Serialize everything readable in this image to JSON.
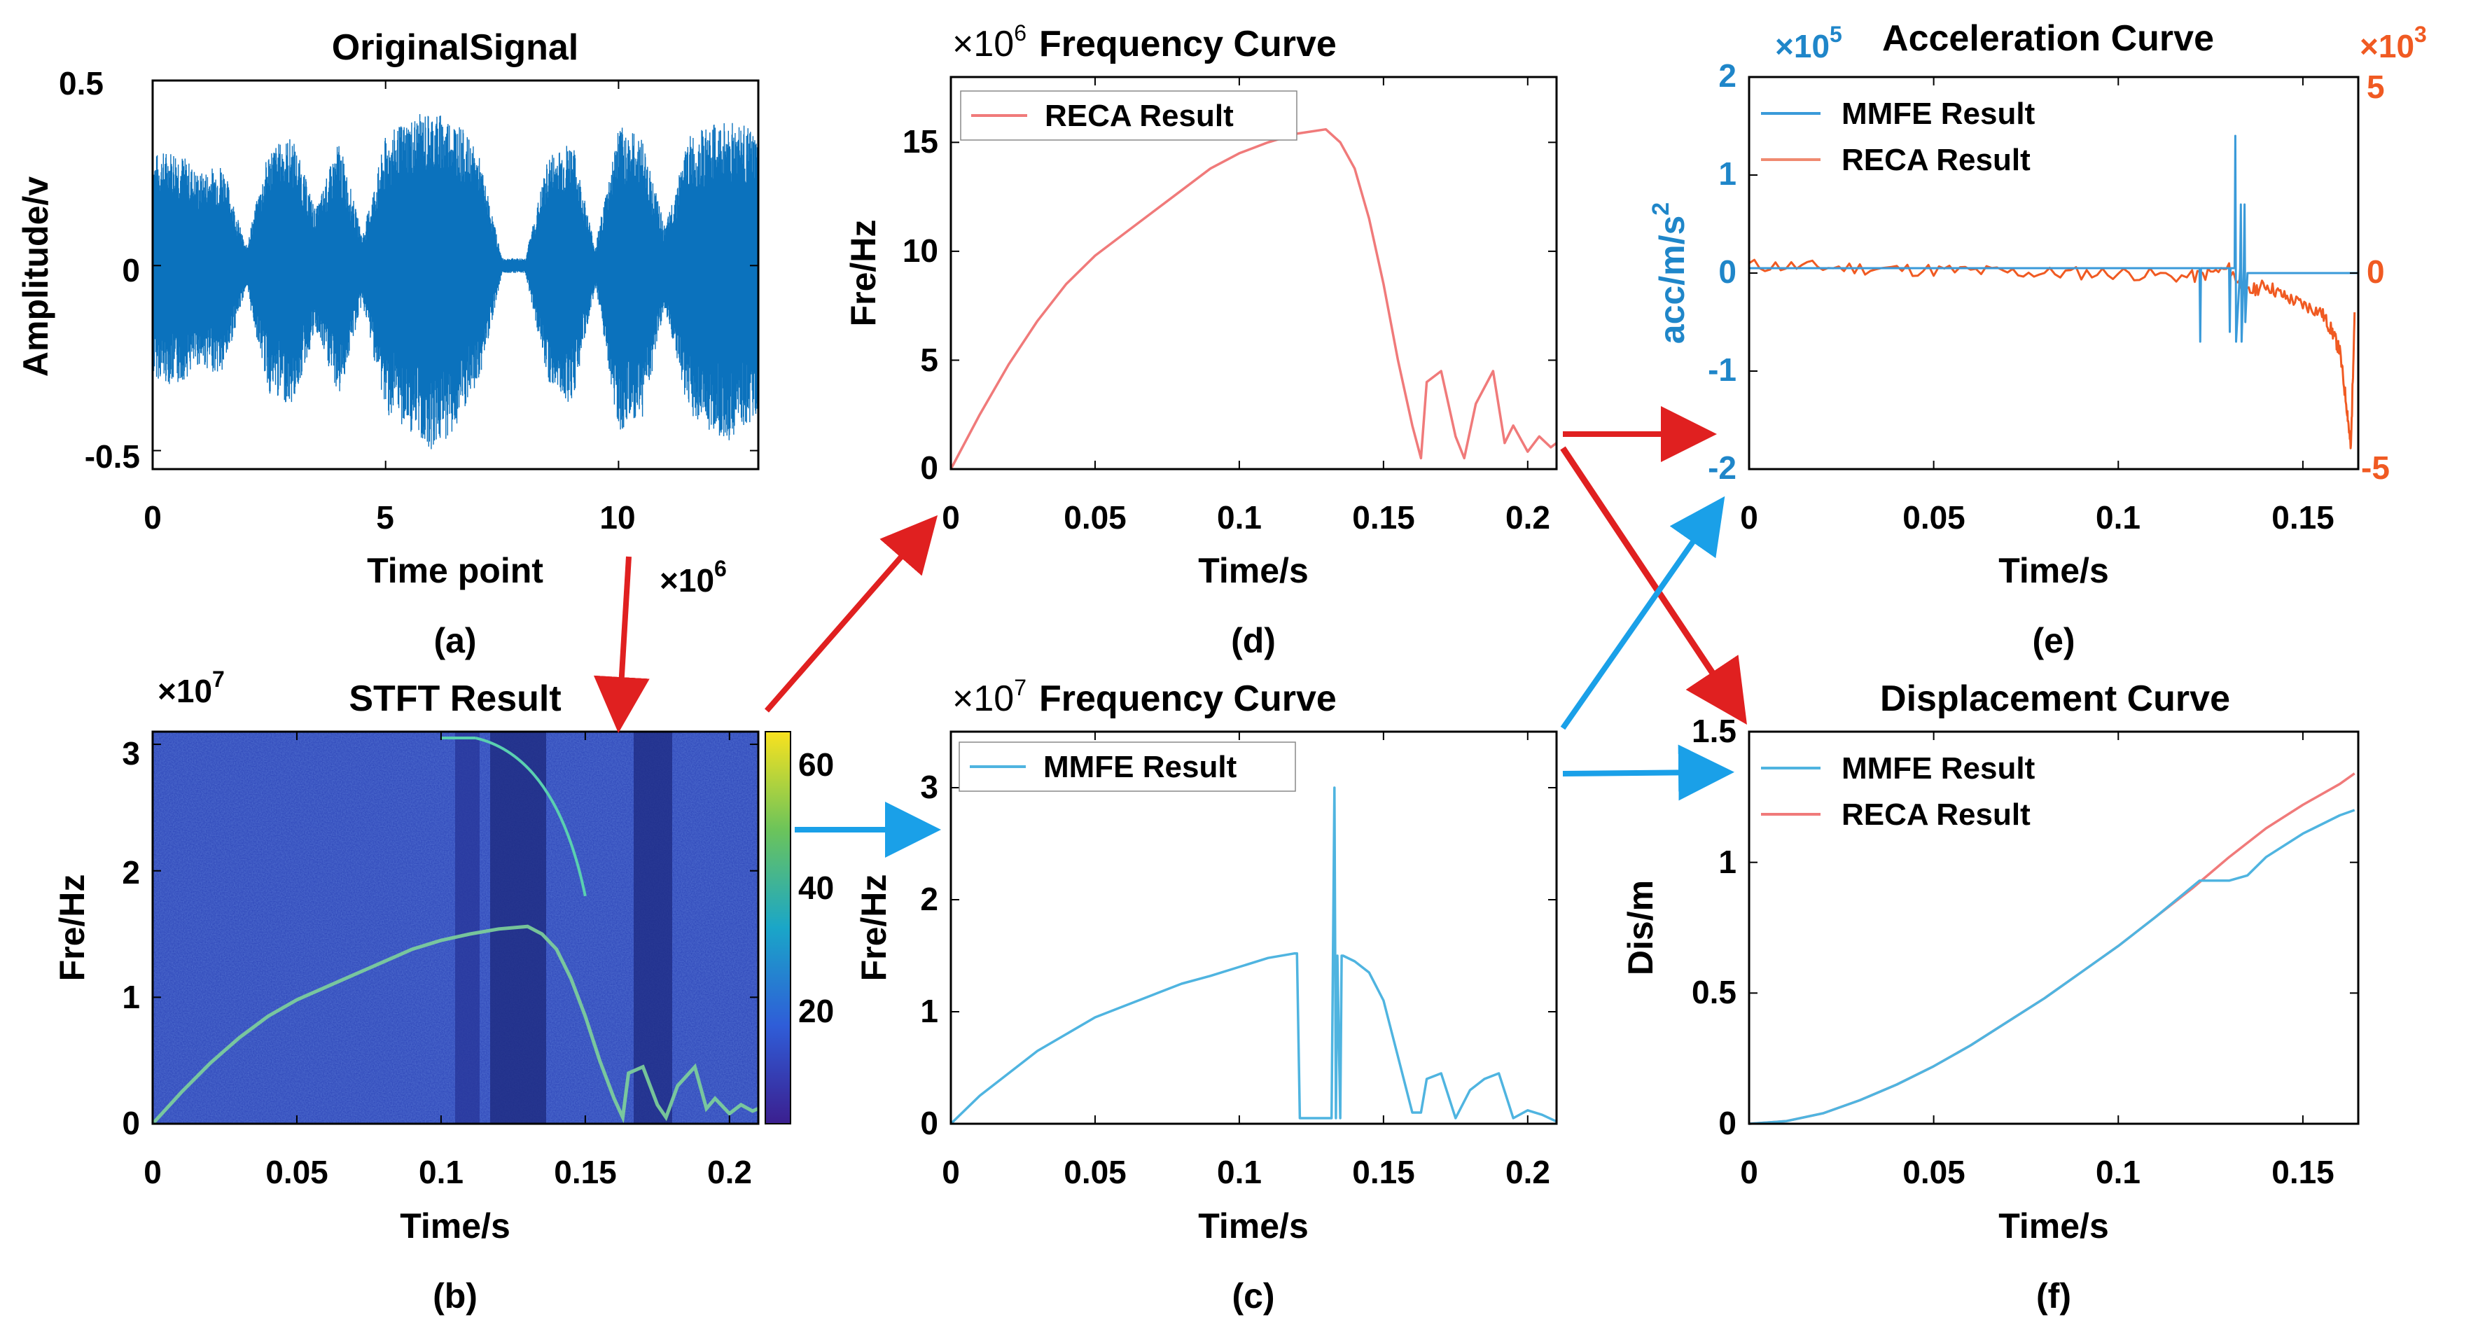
{
  "figure_captions": [
    "(a)",
    "(b)",
    "(c)",
    "(d)",
    "(e)",
    "(f)"
  ],
  "colors": {
    "signal": "#0b72bd",
    "mmfe": "#4fb4e0",
    "reca": "#f07a7a",
    "acc_mmfe": "#3a9ad9",
    "acc_reca": "#f05a22",
    "arrow_red": "#e02020",
    "arrow_blue": "#1aa0e8"
  },
  "chart_data": [
    {
      "id": "a",
      "type": "line",
      "title": "OriginalSignal",
      "xlabel": "Time point",
      "ylabel": "Amplitude/v",
      "x_multiplier": "×10",
      "x_multiplier_exp": "6",
      "xlim": [
        0,
        13
      ],
      "ylim": [
        -0.55,
        0.5
      ],
      "xticks": [
        "0",
        "5",
        "10"
      ],
      "yticks": [
        "0.5",
        "0",
        "-0.5"
      ],
      "envelope_x": [
        0,
        0.5,
        1,
        1.5,
        2,
        2.5,
        3,
        3.5,
        4,
        4.5,
        5,
        5.5,
        6,
        6.5,
        7,
        7.5,
        8,
        8.5,
        9,
        9.5,
        10,
        10.5,
        11,
        11.5,
        12,
        12.5,
        13
      ],
      "envelope_upper": [
        0.3,
        0.32,
        0.25,
        0.28,
        0.05,
        0.32,
        0.35,
        0.15,
        0.34,
        0.08,
        0.35,
        0.4,
        0.42,
        0.4,
        0.3,
        0.02,
        0.02,
        0.3,
        0.34,
        0.05,
        0.38,
        0.35,
        0.1,
        0.35,
        0.38,
        0.4,
        0.35
      ],
      "envelope_lower": [
        -0.3,
        -0.33,
        -0.27,
        -0.3,
        -0.06,
        -0.35,
        -0.38,
        -0.18,
        -0.36,
        -0.1,
        -0.4,
        -0.45,
        -0.5,
        -0.45,
        -0.32,
        -0.02,
        -0.02,
        -0.32,
        -0.38,
        -0.06,
        -0.45,
        -0.42,
        -0.12,
        -0.4,
        -0.45,
        -0.48,
        -0.4
      ]
    },
    {
      "id": "b",
      "type": "heatmap",
      "title": "STFT Result",
      "xlabel": "Time/s",
      "ylabel": "Fre/Hz",
      "y_multiplier": "×10",
      "y_multiplier_exp": "7",
      "xlim": [
        0,
        0.21
      ],
      "ylim": [
        0,
        3.1
      ],
      "xticks": [
        "0",
        "0.05",
        "0.1",
        "0.15",
        "0.2"
      ],
      "yticks": [
        "0",
        "1",
        "2",
        "3"
      ],
      "colorbar_ticks": [
        "20",
        "40",
        "60"
      ],
      "colorbar_range": [
        0,
        65
      ]
    },
    {
      "id": "c",
      "type": "line",
      "title": "Frequency Curve",
      "title_prefix": "×10",
      "title_prefix_exp": "7",
      "xlabel": "Time/s",
      "ylabel": "Fre/Hz",
      "xlim": [
        0,
        0.21
      ],
      "ylim": [
        0,
        3.5
      ],
      "xticks": [
        "0",
        "0.05",
        "0.1",
        "0.15",
        "0.2"
      ],
      "yticks": [
        "0",
        "1",
        "2",
        "3"
      ],
      "legend": [
        "MMFE Result"
      ],
      "series": [
        {
          "name": "MMFE Result",
          "x": [
            0,
            0.01,
            0.02,
            0.03,
            0.04,
            0.05,
            0.06,
            0.07,
            0.08,
            0.09,
            0.1,
            0.11,
            0.119,
            0.12,
            0.121,
            0.132,
            0.133,
            0.1335,
            0.134,
            0.135,
            0.1355,
            0.136,
            0.14,
            0.145,
            0.15,
            0.155,
            0.16,
            0.163,
            0.165,
            0.17,
            0.175,
            0.18,
            0.185,
            0.19,
            0.195,
            0.2,
            0.205,
            0.21
          ],
          "y": [
            0,
            0.25,
            0.45,
            0.65,
            0.8,
            0.95,
            1.05,
            1.15,
            1.25,
            1.32,
            1.4,
            1.48,
            1.52,
            1.52,
            0.05,
            0.05,
            3.0,
            0.05,
            1.5,
            0.05,
            1.5,
            1.5,
            1.45,
            1.35,
            1.1,
            0.6,
            0.1,
            0.1,
            0.4,
            0.45,
            0.05,
            0.3,
            0.4,
            0.45,
            0.05,
            0.12,
            0.08,
            0.02
          ]
        }
      ]
    },
    {
      "id": "d",
      "type": "line",
      "title": "Frequency Curve",
      "title_prefix": "×10",
      "title_prefix_exp": "6",
      "xlabel": "Time/s",
      "ylabel": "Fre/Hz",
      "xlim": [
        0,
        0.21
      ],
      "ylim": [
        0,
        18
      ],
      "xticks": [
        "0",
        "0.05",
        "0.1",
        "0.15",
        "0.2"
      ],
      "yticks": [
        "0",
        "5",
        "10",
        "15"
      ],
      "legend": [
        "RECA Result"
      ],
      "series": [
        {
          "name": "RECA Result",
          "x": [
            0,
            0.01,
            0.02,
            0.03,
            0.04,
            0.05,
            0.06,
            0.07,
            0.08,
            0.09,
            0.1,
            0.11,
            0.12,
            0.13,
            0.135,
            0.14,
            0.145,
            0.15,
            0.155,
            0.16,
            0.163,
            0.165,
            0.17,
            0.175,
            0.178,
            0.182,
            0.188,
            0.192,
            0.195,
            0.2,
            0.204,
            0.208,
            0.21
          ],
          "y": [
            0,
            2.5,
            4.8,
            6.8,
            8.5,
            9.8,
            10.8,
            11.8,
            12.8,
            13.8,
            14.5,
            15.0,
            15.4,
            15.6,
            15.0,
            13.8,
            11.5,
            8.5,
            5.0,
            2.0,
            0.5,
            4.0,
            4.5,
            1.5,
            0.5,
            3.0,
            4.5,
            1.2,
            2.0,
            0.8,
            1.5,
            1.0,
            1.2
          ]
        }
      ]
    },
    {
      "id": "e",
      "type": "line",
      "title": "Acceleration Curve",
      "xlabel": "Time/s",
      "ylabel_left": "acc/m/s",
      "ylabel_left_exp": "2",
      "left_multiplier": "×10",
      "left_multiplier_exp": "5",
      "right_multiplier": "×10",
      "right_multiplier_exp": "3",
      "xlim": [
        0,
        0.165
      ],
      "ylim_left": [
        -2,
        2
      ],
      "ylim_right": [
        -5,
        5
      ],
      "xticks": [
        "0",
        "0.05",
        "0.1",
        "0.15"
      ],
      "yticks_left": [
        "2",
        "1",
        "0",
        "-1",
        "-2"
      ],
      "yticks_right": [
        "5",
        "0",
        "-5"
      ],
      "legend": [
        "MMFE Result",
        "RECA Result"
      ],
      "series": [
        {
          "name": "MMFE Result",
          "axis": "left",
          "x": [
            0,
            0.12,
            0.122,
            0.1222,
            0.1224,
            0.13,
            0.1302,
            0.1304,
            0.1315,
            0.1317,
            0.1319,
            0.133,
            0.1332,
            0.1334,
            0.134,
            0.1342,
            0.1344,
            0.135,
            0.165
          ],
          "y": [
            0.05,
            0.05,
            0.05,
            -0.7,
            0.05,
            0.05,
            -0.6,
            0.05,
            0.05,
            1.4,
            -0.7,
            0.05,
            0.7,
            -0.7,
            0.05,
            0.7,
            -0.5,
            0.0,
            0.0
          ]
        },
        {
          "name": "RECA Result",
          "axis": "right",
          "x": [
            0,
            0.02,
            0.04,
            0.06,
            0.08,
            0.1,
            0.12,
            0.13,
            0.135,
            0.14,
            0.145,
            0.15,
            0.155,
            0.158,
            0.16,
            0.162,
            0.163,
            0.164
          ],
          "y": [
            0.2,
            0.15,
            0.1,
            0.05,
            0.0,
            0.0,
            -0.1,
            0.1,
            -0.5,
            -0.3,
            -0.6,
            -0.8,
            -1.0,
            -1.5,
            -2.0,
            -3.5,
            -4.5,
            -1.0
          ]
        }
      ]
    },
    {
      "id": "f",
      "type": "line",
      "title": "Displacement Curve",
      "xlabel": "Time/s",
      "ylabel": "Dis/m",
      "xlim": [
        0,
        0.165
      ],
      "ylim": [
        0,
        1.5
      ],
      "xticks": [
        "0",
        "0.05",
        "0.1",
        "0.15"
      ],
      "yticks": [
        "0",
        "0.5",
        "1",
        "1.5"
      ],
      "legend": [
        "MMFE Result",
        "RECA Result"
      ],
      "series": [
        {
          "name": "MMFE Result",
          "x": [
            0,
            0.01,
            0.02,
            0.03,
            0.04,
            0.05,
            0.06,
            0.07,
            0.08,
            0.09,
            0.1,
            0.11,
            0.122,
            0.13,
            0.135,
            0.14,
            0.15,
            0.16,
            0.164
          ],
          "y": [
            0,
            0.01,
            0.04,
            0.09,
            0.15,
            0.22,
            0.3,
            0.39,
            0.48,
            0.58,
            0.68,
            0.79,
            0.93,
            0.93,
            0.95,
            1.02,
            1.11,
            1.18,
            1.2
          ]
        },
        {
          "name": "RECA Result",
          "x": [
            0,
            0.01,
            0.02,
            0.03,
            0.04,
            0.05,
            0.06,
            0.07,
            0.08,
            0.09,
            0.1,
            0.11,
            0.12,
            0.13,
            0.14,
            0.15,
            0.16,
            0.164
          ],
          "y": [
            0,
            0.01,
            0.04,
            0.09,
            0.15,
            0.22,
            0.3,
            0.39,
            0.48,
            0.58,
            0.68,
            0.79,
            0.9,
            1.02,
            1.13,
            1.22,
            1.3,
            1.34
          ]
        }
      ]
    }
  ]
}
